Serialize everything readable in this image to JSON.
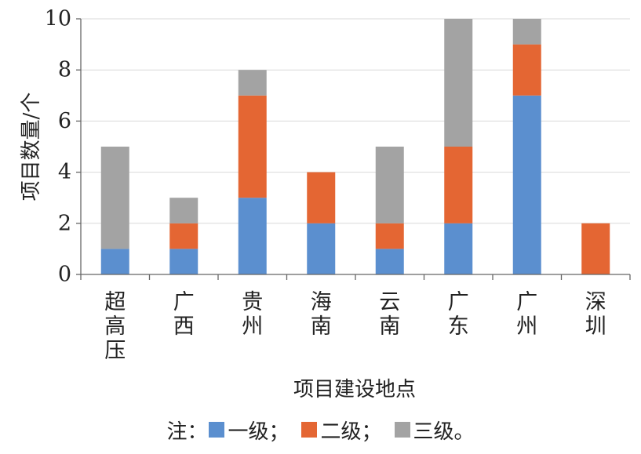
{
  "chart_data": {
    "type": "bar",
    "stacked": true,
    "categories": [
      "超高压",
      "广西",
      "贵州",
      "海南",
      "云南",
      "广东",
      "广州",
      "深圳"
    ],
    "series": [
      {
        "name": "一级",
        "color": "#5b8fcf",
        "values": [
          1,
          1,
          3,
          2,
          1,
          2,
          7,
          0
        ]
      },
      {
        "name": "二级",
        "color": "#e46633",
        "values": [
          0,
          1,
          4,
          2,
          1,
          3,
          2,
          2
        ]
      },
      {
        "name": "三级",
        "color": "#a3a3a3",
        "values": [
          4,
          1,
          1,
          0,
          3,
          5,
          1,
          0
        ]
      }
    ],
    "ylim": [
      0,
      10
    ],
    "yticks": [
      "0",
      "2",
      "4",
      "6",
      "8",
      "10"
    ],
    "xlabel": "项目建设地点",
    "ylabel": "项目数量/个",
    "grid": true,
    "legend": {
      "position": "bottom",
      "prefix": "注：",
      "separator": "；",
      "suffix": "。"
    }
  }
}
